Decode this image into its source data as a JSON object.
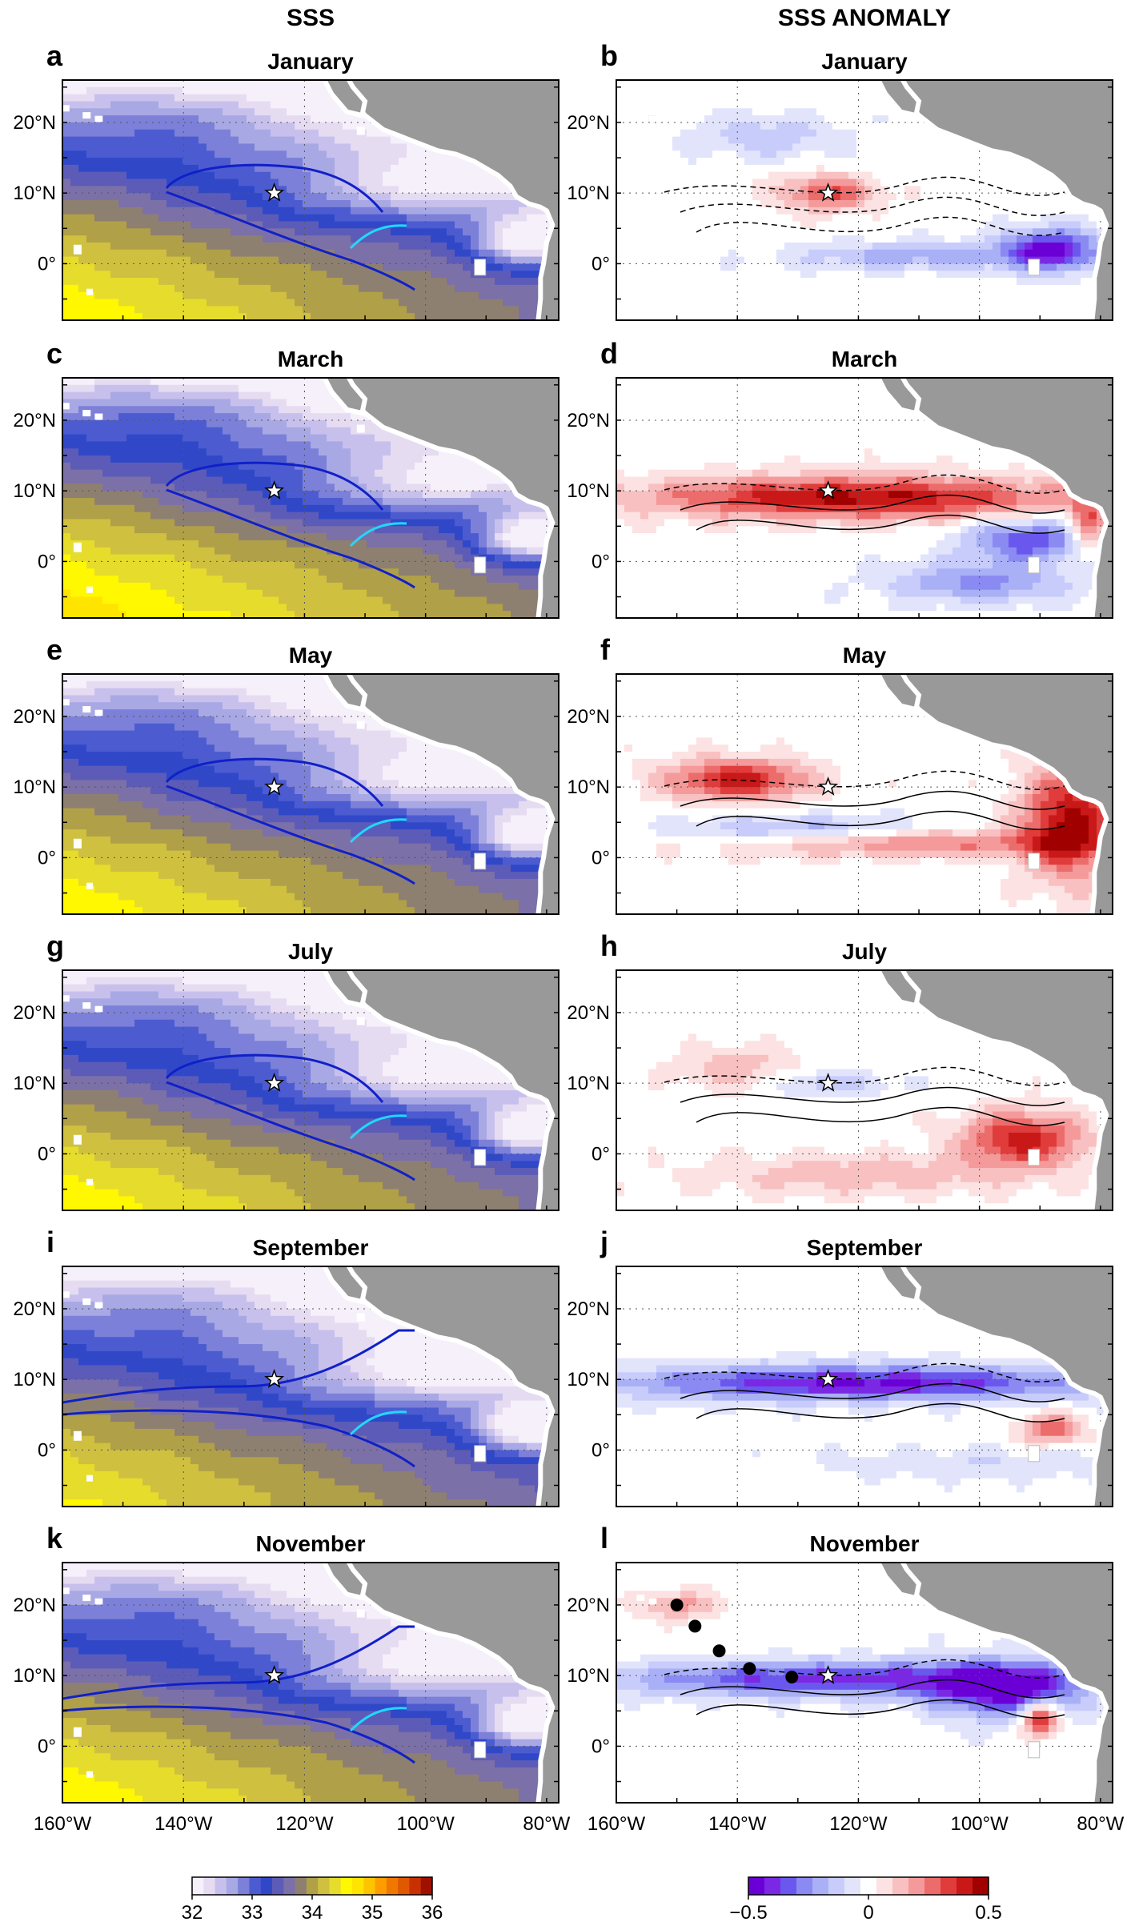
{
  "figure": {
    "column_titles": [
      "SSS",
      "SSS ANOMALY"
    ],
    "rows": [
      {
        "left": {
          "letter": "a",
          "month": "January"
        },
        "right": {
          "letter": "b",
          "month": "January"
        }
      },
      {
        "left": {
          "letter": "c",
          "month": "March"
        },
        "right": {
          "letter": "d",
          "month": "March"
        }
      },
      {
        "left": {
          "letter": "e",
          "month": "May"
        },
        "right": {
          "letter": "f",
          "month": "May"
        }
      },
      {
        "left": {
          "letter": "g",
          "month": "July"
        },
        "right": {
          "letter": "h",
          "month": "July"
        }
      },
      {
        "left": {
          "letter": "i",
          "month": "September"
        },
        "right": {
          "letter": "j",
          "month": "September"
        }
      },
      {
        "left": {
          "letter": "k",
          "month": "November"
        },
        "right": {
          "letter": "l",
          "month": "November"
        }
      }
    ],
    "lat_ticks": [
      "20°N",
      "10°N",
      "0°"
    ],
    "lon_ticks": [
      "160°W",
      "140°W",
      "120°W",
      "100°W",
      "80°W"
    ],
    "map_extent": {
      "lon": [
        -160,
        -78
      ],
      "lat": [
        -8,
        26
      ]
    },
    "star_location": {
      "lon": -125,
      "lat": 10
    },
    "sss_colorbar": {
      "range": [
        32,
        36
      ],
      "tick_labels": [
        "32",
        "33",
        "34",
        "35",
        "36"
      ],
      "colors": [
        "#f5f0fa",
        "#e6dcf2",
        "#c8c0ec",
        "#a8a8e4",
        "#7c80d8",
        "#4c5cd0",
        "#3048c8",
        "#5c5cb8",
        "#7c70a8",
        "#8e8070",
        "#b0a048",
        "#cfc040",
        "#e6dc2c",
        "#fff800",
        "#ffe400",
        "#ffc400",
        "#ff9c00",
        "#f07800",
        "#e05800",
        "#c83000",
        "#a01000"
      ]
    },
    "anomaly_colorbar": {
      "range": [
        -0.5,
        0.5
      ],
      "tick_labels": [
        "−0.5",
        "0",
        "0.5"
      ],
      "colors": [
        "#6a00d6",
        "#7a28e4",
        "#6a58ee",
        "#8a8af2",
        "#a9b0f6",
        "#c8ccfa",
        "#e2e4fc",
        "#ffffff",
        "#fce2e2",
        "#f8c0c0",
        "#f49a9a",
        "#ec6c6c",
        "#e03c3c",
        "#c81818",
        "#a00000"
      ]
    },
    "colors": {
      "land": "#999999",
      "coast": "#ffffff",
      "contour_blue": "#1020c8",
      "contour_cyan": "#20d8ff"
    },
    "november_track_points": [
      {
        "lon": -150,
        "lat": 20
      },
      {
        "lon": -147,
        "lat": 17
      },
      {
        "lon": -143,
        "lat": 13.5
      },
      {
        "lon": -138,
        "lat": 11
      },
      {
        "lon": -131,
        "lat": 9.8
      },
      {
        "lon": -125,
        "lat": 9.6
      }
    ]
  }
}
